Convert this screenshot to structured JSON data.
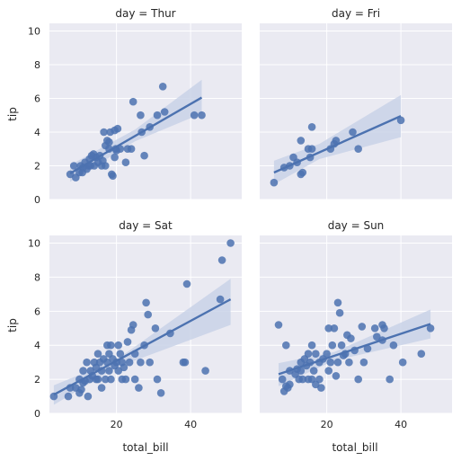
{
  "chart_data": {
    "type": "scatter",
    "layout": "facet-grid 2x2, shared axes, linear regression fit with confidence band",
    "color": "#4c72b0",
    "band_color": "#c9d2e8",
    "background": "#eaeaf2",
    "grid": true,
    "xlabel": "total_bill",
    "ylabel": "tip",
    "xticks": [
      20,
      40
    ],
    "yticks": [
      0,
      2,
      4,
      6,
      8,
      10
    ],
    "xlim": [
      1.9,
      53.8
    ],
    "ylim": [
      0,
      10.45
    ],
    "panels": [
      {
        "title": "day = Thur",
        "points": [
          [
            7.5,
            1.5
          ],
          [
            8.5,
            2.0
          ],
          [
            9.0,
            1.3
          ],
          [
            10.0,
            1.6
          ],
          [
            10.3,
            2.0
          ],
          [
            10.8,
            1.6
          ],
          [
            11.0,
            1.9
          ],
          [
            11.5,
            2.2
          ],
          [
            12.0,
            1.8
          ],
          [
            12.5,
            2.0
          ],
          [
            12.7,
            2.4
          ],
          [
            13.0,
            2.0
          ],
          [
            13.3,
            2.6
          ],
          [
            13.8,
            2.7
          ],
          [
            14.0,
            2.0
          ],
          [
            14.5,
            2.5
          ],
          [
            15.0,
            2.2
          ],
          [
            15.5,
            2.6
          ],
          [
            16.0,
            2.0
          ],
          [
            16.3,
            2.3
          ],
          [
            16.6,
            4.0
          ],
          [
            17.0,
            3.2
          ],
          [
            17.0,
            2.0
          ],
          [
            17.5,
            3.5
          ],
          [
            18.0,
            3.0
          ],
          [
            18.0,
            3.4
          ],
          [
            18.3,
            4.0
          ],
          [
            18.7,
            1.5
          ],
          [
            19.0,
            1.4
          ],
          [
            19.5,
            2.5
          ],
          [
            19.8,
            3.0
          ],
          [
            19.5,
            4.1
          ],
          [
            20.0,
            2.9
          ],
          [
            20.3,
            4.2
          ],
          [
            21.0,
            3.0
          ],
          [
            22.5,
            2.2
          ],
          [
            23.0,
            3.0
          ],
          [
            24.0,
            3.0
          ],
          [
            24.5,
            5.8
          ],
          [
            26.5,
            5.0
          ],
          [
            26.8,
            4.0
          ],
          [
            27.5,
            2.6
          ],
          [
            29.0,
            4.3
          ],
          [
            31.0,
            5.0
          ],
          [
            32.5,
            6.7
          ],
          [
            33.0,
            5.2
          ],
          [
            41.0,
            5.0
          ],
          [
            43.0,
            5.0
          ]
        ],
        "fit": {
          "x": [
            7.5,
            43.0
          ],
          "y": [
            1.55,
            6.05
          ]
        },
        "band_x": [
          7.5,
          25.0,
          43.0
        ],
        "band_low": [
          1.05,
          3.45,
          5.1
        ],
        "band_high": [
          2.05,
          4.15,
          7.1
        ]
      },
      {
        "title": "day = Fri",
        "points": [
          [
            5.75,
            1.0
          ],
          [
            8.5,
            1.9
          ],
          [
            10.0,
            2.0
          ],
          [
            11.0,
            2.5
          ],
          [
            12.0,
            2.2
          ],
          [
            13.0,
            1.5
          ],
          [
            13.5,
            1.6
          ],
          [
            13.0,
            3.5
          ],
          [
            15.0,
            3.0
          ],
          [
            15.5,
            2.5
          ],
          [
            16.0,
            3.0
          ],
          [
            16.0,
            4.3
          ],
          [
            21.0,
            3.0
          ],
          [
            22.0,
            3.3
          ],
          [
            22.5,
            3.5
          ],
          [
            27.0,
            4.0
          ],
          [
            28.5,
            3.0
          ],
          [
            40.0,
            4.7
          ]
        ],
        "fit": {
          "x": [
            5.75,
            40.0
          ],
          "y": [
            1.6,
            4.95
          ]
        },
        "band_x": [
          5.75,
          18.0,
          40.0
        ],
        "band_low": [
          0.9,
          2.4,
          3.7
        ],
        "band_high": [
          2.3,
          3.3,
          6.2
        ]
      },
      {
        "title": "day = Sat",
        "points": [
          [
            3.1,
            1.0
          ],
          [
            7.0,
            1.0
          ],
          [
            7.5,
            1.5
          ],
          [
            9.0,
            1.5
          ],
          [
            10.0,
            1.2
          ],
          [
            10.0,
            2.0
          ],
          [
            10.5,
            1.4
          ],
          [
            11.0,
            1.8
          ],
          [
            11.0,
            2.5
          ],
          [
            11.5,
            1.9
          ],
          [
            12.0,
            3.0
          ],
          [
            12.3,
            1.0
          ],
          [
            12.8,
            2.0
          ],
          [
            13.0,
            2.5
          ],
          [
            13.5,
            2.2
          ],
          [
            14.0,
            3.0
          ],
          [
            14.5,
            2.0
          ],
          [
            14.5,
            2.7
          ],
          [
            15.0,
            2.0
          ],
          [
            15.0,
            3.5
          ],
          [
            15.5,
            3.0
          ],
          [
            16.0,
            1.5
          ],
          [
            16.0,
            2.5
          ],
          [
            16.5,
            3.2
          ],
          [
            17.0,
            2.0
          ],
          [
            17.5,
            3.0
          ],
          [
            17.5,
            4.0
          ],
          [
            18.0,
            2.5
          ],
          [
            18.0,
            3.5
          ],
          [
            18.5,
            2.0
          ],
          [
            18.5,
            4.0
          ],
          [
            19.0,
            3.2
          ],
          [
            19.5,
            2.8
          ],
          [
            20.0,
            3.0
          ],
          [
            20.5,
            2.5
          ],
          [
            20.5,
            4.0
          ],
          [
            21.0,
            3.5
          ],
          [
            21.5,
            2.0
          ],
          [
            21.5,
            3.0
          ],
          [
            22.0,
            2.7
          ],
          [
            22.5,
            2.0
          ],
          [
            23.0,
            4.2
          ],
          [
            23.5,
            3.0
          ],
          [
            24.0,
            4.9
          ],
          [
            24.5,
            5.2
          ],
          [
            25.0,
            3.5
          ],
          [
            25.0,
            2.0
          ],
          [
            26.0,
            1.5
          ],
          [
            26.5,
            3.0
          ],
          [
            27.5,
            4.0
          ],
          [
            28.0,
            6.5
          ],
          [
            28.5,
            5.8
          ],
          [
            29.0,
            3.0
          ],
          [
            30.5,
            5.0
          ],
          [
            31.0,
            2.0
          ],
          [
            32.0,
            1.2
          ],
          [
            34.5,
            4.7
          ],
          [
            38.0,
            3.0
          ],
          [
            38.5,
            3.0
          ],
          [
            39.0,
            7.6
          ],
          [
            44.0,
            2.5
          ],
          [
            48.0,
            6.7
          ],
          [
            48.5,
            9.0
          ],
          [
            50.8,
            10.0
          ]
        ],
        "fit": {
          "x": [
            3.1,
            50.8
          ],
          "y": [
            1.1,
            6.7
          ]
        },
        "band_x": [
          3.1,
          20.0,
          50.8
        ],
        "band_low": [
          0.5,
          2.7,
          5.2
        ],
        "band_high": [
          1.65,
          3.15,
          7.9
        ]
      },
      {
        "title": "day = Sun",
        "points": [
          [
            7.0,
            5.2
          ],
          [
            8.0,
            2.0
          ],
          [
            8.5,
            1.3
          ],
          [
            9.0,
            4.0
          ],
          [
            9.0,
            1.6
          ],
          [
            9.5,
            1.5
          ],
          [
            10.0,
            1.7
          ],
          [
            10.0,
            2.5
          ],
          [
            11.5,
            2.3
          ],
          [
            12.0,
            2.6
          ],
          [
            12.5,
            2.0
          ],
          [
            13.0,
            2.5
          ],
          [
            13.0,
            3.0
          ],
          [
            13.5,
            2.0
          ],
          [
            14.0,
            3.2
          ],
          [
            14.5,
            2.8
          ],
          [
            15.0,
            2.0
          ],
          [
            15.0,
            3.5
          ],
          [
            15.5,
            3.0
          ],
          [
            16.0,
            2.0
          ],
          [
            16.0,
            4.0
          ],
          [
            16.5,
            2.5
          ],
          [
            17.0,
            1.7
          ],
          [
            17.0,
            3.5
          ],
          [
            18.0,
            2.0
          ],
          [
            18.0,
            3.0
          ],
          [
            18.5,
            1.5
          ],
          [
            19.0,
            3.2
          ],
          [
            20.0,
            3.5
          ],
          [
            20.5,
            2.5
          ],
          [
            20.5,
            5.0
          ],
          [
            21.0,
            3.0
          ],
          [
            21.5,
            4.0
          ],
          [
            22.0,
            5.0
          ],
          [
            22.5,
            2.2
          ],
          [
            23.0,
            3.0
          ],
          [
            23.0,
            6.5
          ],
          [
            23.5,
            5.9
          ],
          [
            24.0,
            4.0
          ],
          [
            24.5,
            3.4
          ],
          [
            25.0,
            3.5
          ],
          [
            25.5,
            4.6
          ],
          [
            26.0,
            3.0
          ],
          [
            26.5,
            4.4
          ],
          [
            27.5,
            3.7
          ],
          [
            28.5,
            2.0
          ],
          [
            29.5,
            5.1
          ],
          [
            30.0,
            3.0
          ],
          [
            31.0,
            3.8
          ],
          [
            33.0,
            5.0
          ],
          [
            33.5,
            4.5
          ],
          [
            35.0,
            4.3
          ],
          [
            35.0,
            5.2
          ],
          [
            35.5,
            5.0
          ],
          [
            37.0,
            2.0
          ],
          [
            38.0,
            4.0
          ],
          [
            40.5,
            3.0
          ],
          [
            45.5,
            3.5
          ],
          [
            48.0,
            5.0
          ]
        ],
        "fit": {
          "x": [
            7.0,
            48.0
          ],
          "y": [
            2.3,
            5.25
          ]
        },
        "band_x": [
          7.0,
          22.0,
          48.0
        ],
        "band_low": [
          1.6,
          3.1,
          4.4
        ],
        "band_high": [
          2.95,
          3.6,
          6.1
        ]
      }
    ]
  }
}
